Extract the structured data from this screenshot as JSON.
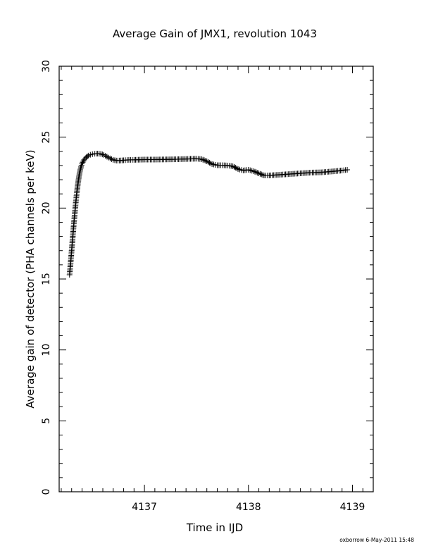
{
  "chart_data": {
    "type": "scatter",
    "title": "Average Gain of JMX1, revolution 1043",
    "xlabel": "Time in IJD",
    "ylabel": "Average gain of detector (PHA channels per keV)",
    "xlim": [
      4136.18,
      4139.2
    ],
    "ylim": [
      0,
      30
    ],
    "xticks": [
      4137,
      4138,
      4139
    ],
    "xtick_labels": [
      "4137",
      "4138",
      "4139"
    ],
    "yticks": [
      0,
      5,
      10,
      15,
      20,
      25,
      30
    ],
    "ytick_labels": [
      "0",
      "5",
      "10",
      "15",
      "20",
      "25",
      "30"
    ],
    "x_minor_step": 0.1,
    "y_minor_step": 1,
    "grid": false,
    "legend": "none",
    "marker": "plus",
    "series": [
      {
        "color": "#000000",
        "x": [
          4136.28,
          4136.29,
          4136.3,
          4136.31,
          4136.32,
          4136.33,
          4136.34,
          4136.35,
          4136.36,
          4136.37,
          4136.38,
          4136.39,
          4136.4,
          4136.42,
          4136.44,
          4136.46,
          4136.48,
          4136.5,
          4136.52,
          4136.55,
          4136.58,
          4136.61,
          4136.64,
          4136.67,
          4136.7,
          4136.73,
          4136.76,
          4136.8,
          4136.85,
          4136.9,
          4137.0,
          4137.1,
          4137.2,
          4137.3,
          4137.4,
          4137.5,
          4137.55,
          4137.6,
          4137.65,
          4137.7,
          4137.75,
          4137.8,
          4137.85,
          4137.9,
          4137.95,
          4138.0,
          4138.05,
          4138.1,
          4138.15,
          4138.2,
          4138.3,
          4138.4,
          4138.5,
          4138.6,
          4138.7,
          4138.8,
          4138.9,
          4138.95
        ],
        "y": [
          15.3,
          16.1,
          17.0,
          17.9,
          18.8,
          19.6,
          20.4,
          21.1,
          21.7,
          22.2,
          22.6,
          22.9,
          23.15,
          23.4,
          23.58,
          23.7,
          23.76,
          23.8,
          23.83,
          23.84,
          23.82,
          23.75,
          23.62,
          23.5,
          23.4,
          23.35,
          23.35,
          23.37,
          23.4,
          23.4,
          23.42,
          23.42,
          23.43,
          23.44,
          23.46,
          23.48,
          23.45,
          23.3,
          23.1,
          23.02,
          23.02,
          23.0,
          22.95,
          22.75,
          22.65,
          22.7,
          22.6,
          22.45,
          22.3,
          22.3,
          22.35,
          22.4,
          22.45,
          22.5,
          22.52,
          22.58,
          22.65,
          22.7
        ]
      }
    ]
  },
  "footer": {
    "stamp": "oxborrow  6-May-2011 15:48"
  }
}
